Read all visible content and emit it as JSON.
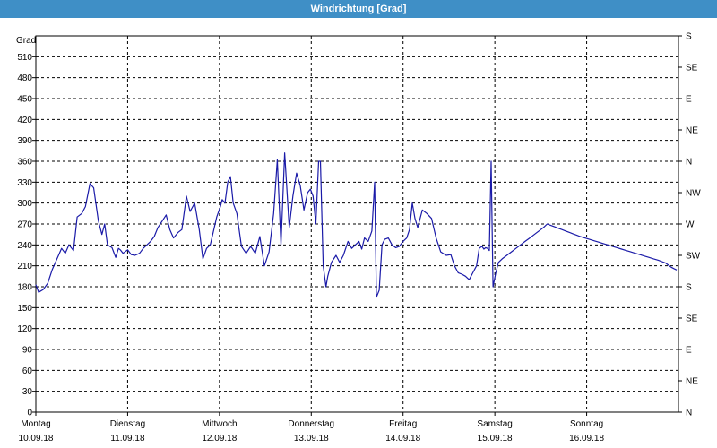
{
  "window": {
    "title": "Windrichtung [Grad]"
  },
  "colors": {
    "titlebar": "#3f8fc6",
    "line": "#1a1aa8",
    "grid": "#000000"
  },
  "chart_data": {
    "type": "line",
    "title": "Windrichtung [Grad]",
    "ylabel": "Grad",
    "ylim": [
      0,
      540
    ],
    "yticks": [
      0,
      30,
      60,
      90,
      120,
      150,
      180,
      210,
      240,
      270,
      300,
      330,
      360,
      390,
      420,
      450,
      480,
      510
    ],
    "right_axis_labels": [
      {
        "value": 0,
        "label": "N"
      },
      {
        "value": 45,
        "label": "NE"
      },
      {
        "value": 90,
        "label": "E"
      },
      {
        "value": 135,
        "label": "SE"
      },
      {
        "value": 180,
        "label": "S"
      },
      {
        "value": 225,
        "label": "SW"
      },
      {
        "value": 270,
        "label": "W"
      },
      {
        "value": 315,
        "label": "NW"
      },
      {
        "value": 360,
        "label": "N"
      },
      {
        "value": 405,
        "label": "NE"
      },
      {
        "value": 450,
        "label": "E"
      },
      {
        "value": 495,
        "label": "SE"
      },
      {
        "value": 540,
        "label": "S"
      }
    ],
    "xlim": [
      0,
      7
    ],
    "x_ticks": [
      {
        "day": "Montag",
        "date": "10.09.18"
      },
      {
        "day": "Dienstag",
        "date": "11.09.18"
      },
      {
        "day": "Mittwoch",
        "date": "12.09.18"
      },
      {
        "day": "Donnerstag",
        "date": "13.09.18"
      },
      {
        "day": "Freitag",
        "date": "14.09.18"
      },
      {
        "day": "Samstag",
        "date": "15.09.18"
      },
      {
        "day": "Sonntag",
        "date": "16.09.18"
      }
    ],
    "grid": true,
    "series": [
      {
        "x": [
          0,
          0.03,
          0.08,
          0.13,
          0.18,
          0.23,
          0.28,
          0.32,
          0.36,
          0.41,
          0.45,
          0.5,
          0.54,
          0.59,
          0.63,
          0.68,
          0.72,
          0.75,
          0.78,
          0.83,
          0.87,
          0.9,
          0.92,
          0.95,
          1.0,
          1.04,
          1.08,
          1.13,
          1.17,
          1.21,
          1.25,
          1.29,
          1.33,
          1.38,
          1.42,
          1.46,
          1.5,
          1.55,
          1.59,
          1.64,
          1.68,
          1.73,
          1.78,
          1.82,
          1.86,
          1.9,
          1.93,
          1.97,
          2.01,
          2.03,
          2.06,
          2.09,
          2.12,
          2.15,
          2.19,
          2.24,
          2.29,
          2.34,
          2.39,
          2.44,
          2.49,
          2.54,
          2.59,
          2.63,
          2.67,
          2.71,
          2.76,
          2.8,
          2.84,
          2.88,
          2.92,
          2.96,
          2.99,
          3.02,
          3.05,
          3.08,
          3.1,
          3.13,
          3.16,
          3.18,
          3.22,
          3.27,
          3.31,
          3.35,
          3.4,
          3.44,
          3.48,
          3.52,
          3.55,
          3.58,
          3.62,
          3.66,
          3.69,
          3.71,
          3.74,
          3.77,
          3.8,
          3.84,
          3.88,
          3.92,
          3.96,
          4.0,
          4.04,
          4.07,
          4.1,
          4.13,
          4.16,
          4.21,
          4.26,
          4.31,
          4.36,
          4.41,
          4.47,
          4.52,
          4.56,
          4.6,
          4.64,
          4.68,
          4.72,
          4.76,
          4.8,
          4.83,
          4.86,
          4.88,
          4.9,
          4.92,
          4.94,
          4.96,
          4.98,
          5.01,
          5.04,
          5.08,
          5.13,
          5.18,
          5.23,
          5.28,
          5.33,
          5.38,
          5.43,
          5.48,
          5.53,
          5.57,
          5.61,
          5.65,
          5.69,
          5.73,
          5.77,
          5.81,
          5.85,
          5.89,
          5.93,
          5.98,
          6.03,
          6.08,
          6.13,
          6.18,
          6.23,
          6.28,
          6.33,
          6.38,
          6.43,
          6.48,
          6.53,
          6.58,
          6.63,
          6.68,
          6.73,
          6.78,
          6.82,
          6.86,
          6.88,
          6.9,
          6.92,
          6.95,
          6.98
        ],
        "y": [
          183,
          172,
          176,
          185,
          205,
          220,
          235,
          228,
          240,
          232,
          280,
          285,
          295,
          328,
          322,
          275,
          255,
          270,
          240,
          236,
          222,
          235,
          233,
          228,
          233,
          226,
          225,
          228,
          235,
          240,
          245,
          252,
          265,
          275,
          283,
          262,
          250,
          258,
          262,
          310,
          288,
          300,
          262,
          220,
          235,
          240,
          257,
          280,
          295,
          305,
          300,
          330,
          338,
          300,
          285,
          238,
          228,
          238,
          228,
          252,
          210,
          230,
          285,
          362,
          240,
          372,
          265,
          310,
          343,
          325,
          290,
          315,
          320,
          310,
          270,
          360,
          360,
          210,
          180,
          195,
          215,
          225,
          215,
          225,
          245,
          235,
          240,
          245,
          234,
          250,
          245,
          260,
          330,
          165,
          175,
          240,
          248,
          250,
          240,
          236,
          238,
          245,
          250,
          262,
          300,
          278,
          265,
          290,
          285,
          278,
          250,
          230,
          225,
          226,
          210,
          200,
          198,
          195,
          190,
          200,
          210,
          235,
          238,
          234,
          236,
          235,
          232,
          360,
          180,
          200,
          215,
          220,
          225,
          230,
          235,
          240,
          245,
          250,
          255,
          260,
          265,
          270,
          268,
          266,
          264,
          262,
          260,
          258,
          256,
          254,
          252,
          250,
          248,
          246,
          244,
          242,
          240,
          238,
          236,
          234,
          232,
          230,
          228,
          226,
          224,
          222,
          220,
          218,
          216,
          214,
          212,
          210,
          208,
          206,
          204
        ]
      }
    ]
  }
}
